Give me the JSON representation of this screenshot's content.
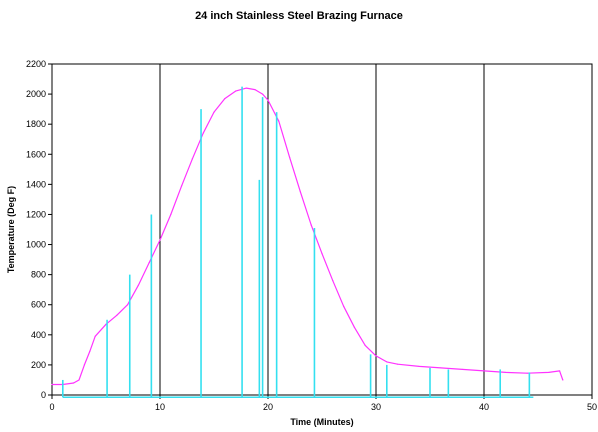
{
  "chart_data": {
    "type": "line",
    "title": "24 inch Stainless Steel Brazing Furnace",
    "xlabel": "Time (Minutes)",
    "ylabel": "Temperature (Deg F)",
    "xlim": [
      0,
      50
    ],
    "ylim": [
      0,
      2200
    ],
    "x_ticks": [
      0,
      10,
      20,
      30,
      40,
      50
    ],
    "y_ticks": [
      0,
      200,
      400,
      600,
      800,
      1000,
      1200,
      1400,
      1600,
      1800,
      2000,
      2200
    ],
    "grid": {
      "vertical": true,
      "horizontal": false
    },
    "colors": {
      "furnace_curve": "#ff33ff",
      "spikes": "#33e0f0"
    },
    "series": [
      {
        "style": "line",
        "color": "#ff33ff",
        "x": [
          0,
          1,
          2,
          2.5,
          3,
          3.5,
          4,
          5,
          6,
          7,
          8,
          9,
          10,
          11,
          12,
          13,
          14,
          15,
          16,
          17,
          18,
          18.8,
          19.5,
          20,
          21,
          22,
          23,
          24,
          25,
          26,
          27,
          28,
          29,
          30,
          31,
          32,
          34,
          36,
          38,
          40,
          42,
          44,
          46,
          47,
          47.3
        ],
        "y": [
          70,
          70,
          80,
          100,
          200,
          290,
          390,
          470,
          530,
          600,
          730,
          880,
          1030,
          1200,
          1390,
          1570,
          1740,
          1880,
          1970,
          2020,
          2040,
          2030,
          2000,
          1960,
          1820,
          1580,
          1350,
          1130,
          940,
          760,
          590,
          450,
          330,
          260,
          220,
          205,
          190,
          180,
          170,
          160,
          150,
          145,
          150,
          160,
          100
        ]
      },
      {
        "style": "spikes",
        "color": "#33e0f0",
        "baseline": -15,
        "x": [
          1.0,
          5.1,
          7.2,
          9.2,
          13.8,
          17.6,
          19.2,
          19.5,
          20.8,
          24.3,
          29.5,
          31.0,
          35.0,
          36.7,
          41.5,
          44.2
        ],
        "y": [
          100,
          500,
          800,
          1200,
          1900,
          2050,
          1430,
          1980,
          1880,
          1110,
          270,
          200,
          180,
          170,
          170,
          150
        ]
      }
    ]
  }
}
